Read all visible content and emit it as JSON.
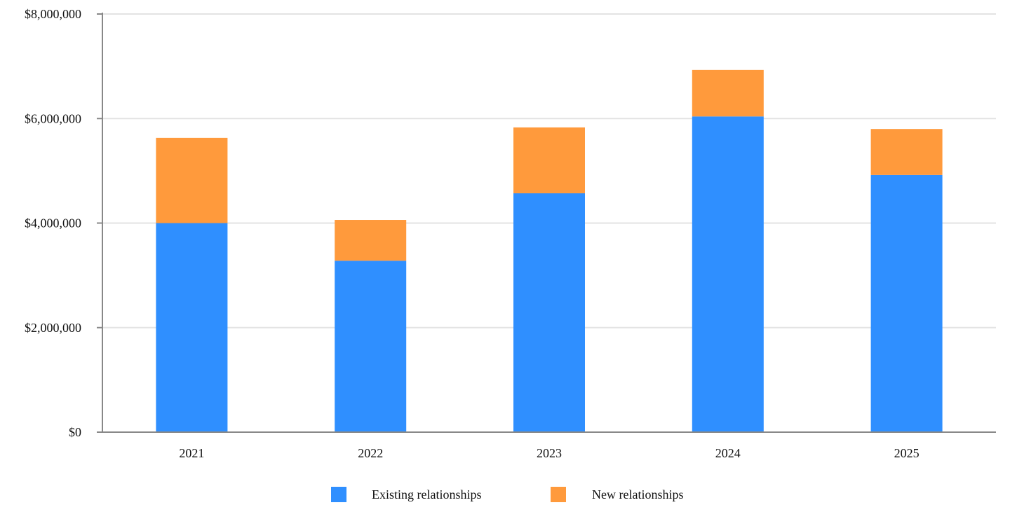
{
  "chart_data": {
    "type": "bar",
    "stacked": true,
    "categories": [
      "2021",
      "2022",
      "2023",
      "2024",
      "2025"
    ],
    "series": [
      {
        "name": "Existing relationships",
        "color": "#2f8fff",
        "values": [
          4000000,
          3280000,
          4570000,
          6040000,
          4920000
        ]
      },
      {
        "name": "New relationships",
        "color": "#ff9a3c",
        "values": [
          1630000,
          780000,
          1260000,
          890000,
          880000
        ]
      }
    ],
    "title": "",
    "xlabel": "",
    "ylabel": "",
    "ylim": [
      0,
      8000000
    ],
    "yticks": [
      0,
      2000000,
      4000000,
      6000000,
      8000000
    ],
    "ytick_labels": [
      "$0",
      "$2,000,000",
      "$4,000,000",
      "$6,000,000",
      "$8,000,000"
    ],
    "grid": true,
    "legend": "bottom"
  }
}
